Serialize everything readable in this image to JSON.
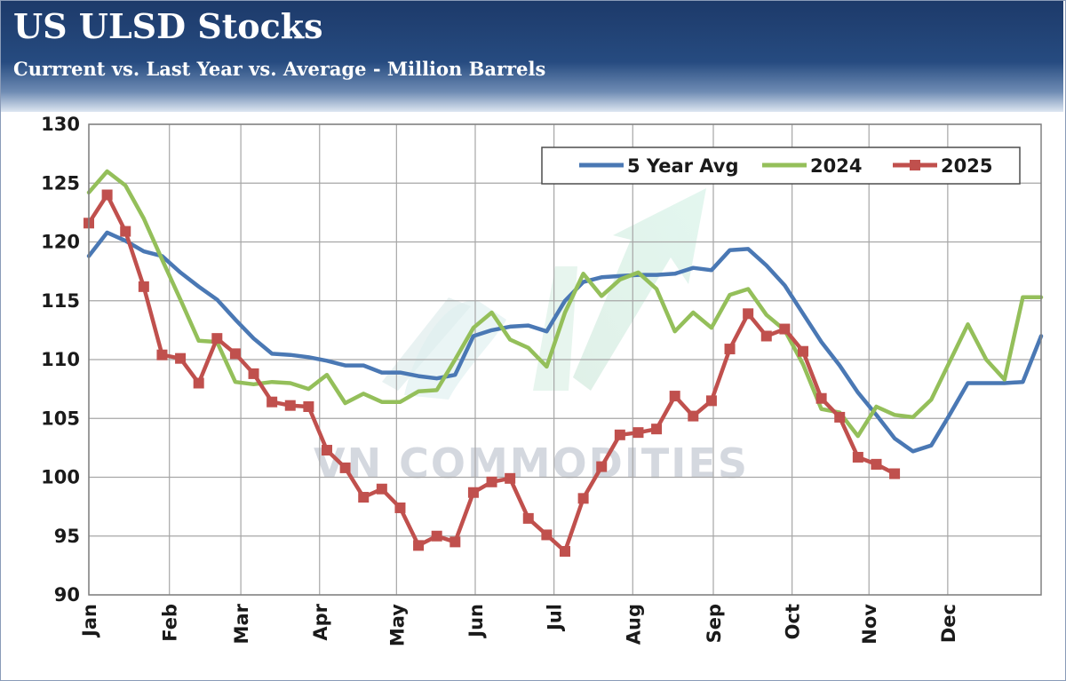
{
  "header": {
    "title": "US ULSD Stocks",
    "subtitle": "Currrent vs. Last Year vs. Average - Million Barrels"
  },
  "watermark": {
    "text": "VN COMMODITIES"
  },
  "chart_data": {
    "type": "line",
    "title": "US ULSD Stocks",
    "subtitle": "Currrent vs. Last Year vs. Average - Million Barrels",
    "xlabel": "",
    "ylabel": "",
    "ylim": [
      90,
      130
    ],
    "yticks": [
      90,
      95,
      100,
      105,
      110,
      115,
      120,
      125,
      130
    ],
    "xlim": [
      1,
      53
    ],
    "month_labels": [
      "Jan",
      "Feb",
      "Mar",
      "Apr",
      "May",
      "Jun",
      "Jul",
      "Aug",
      "Sep",
      "Oct",
      "Nov",
      "Dec"
    ],
    "month_weeks": [
      1,
      5.4,
      9.3,
      13.6,
      17.8,
      22.1,
      26.4,
      30.7,
      35.1,
      39.4,
      43.6,
      47.9
    ],
    "grid": true,
    "legend": {
      "position": "top-right",
      "entries": [
        "5 Year Avg",
        "2024",
        "2025"
      ]
    },
    "series": [
      {
        "name": "5 Year Avg",
        "color": "#4a78b4",
        "marker": "none",
        "x": [
          1,
          2,
          3,
          4,
          5,
          6,
          7,
          8,
          9,
          10,
          11,
          12,
          13,
          14,
          15,
          16,
          17,
          18,
          19,
          20,
          21,
          22,
          23,
          24,
          25,
          26,
          27,
          28,
          29,
          30,
          31,
          32,
          33,
          34,
          35,
          36,
          37,
          38,
          39,
          40,
          41,
          42,
          43,
          44,
          45,
          46,
          47,
          48,
          49,
          50,
          51,
          52,
          53
        ],
        "values": [
          118.8,
          120.8,
          120.1,
          119.2,
          118.8,
          117.4,
          116.2,
          115.1,
          113.4,
          111.8,
          110.5,
          110.4,
          110.2,
          109.9,
          109.5,
          109.5,
          108.9,
          108.9,
          108.6,
          108.4,
          108.7,
          112.0,
          112.5,
          112.8,
          112.9,
          112.4,
          115.0,
          116.6,
          117.0,
          117.1,
          117.2,
          117.2,
          117.3,
          117.8,
          117.6,
          119.3,
          119.4,
          118.0,
          116.3,
          113.9,
          111.5,
          109.5,
          107.2,
          105.3,
          103.3,
          102.2,
          102.7,
          105.3,
          108.0,
          108.0,
          108.0,
          108.1,
          112.0
        ]
      },
      {
        "name": "2024",
        "color": "#94bf5a",
        "marker": "none",
        "x": [
          1,
          2,
          3,
          4,
          5,
          6,
          7,
          8,
          9,
          10,
          11,
          12,
          13,
          14,
          15,
          16,
          17,
          18,
          19,
          20,
          21,
          22,
          23,
          24,
          25,
          26,
          27,
          28,
          29,
          30,
          31,
          32,
          33,
          34,
          35,
          36,
          37,
          38,
          39,
          40,
          41,
          42,
          43,
          44,
          45,
          46,
          47,
          48,
          49,
          50,
          51,
          52,
          53
        ],
        "values": [
          124.2,
          126.0,
          124.8,
          122.0,
          118.5,
          115.1,
          111.6,
          111.5,
          108.1,
          107.9,
          108.1,
          108.0,
          107.5,
          108.7,
          106.3,
          107.1,
          106.4,
          106.4,
          107.3,
          107.4,
          110.0,
          112.7,
          114.0,
          111.7,
          111.0,
          109.4,
          114.0,
          117.3,
          115.4,
          116.8,
          117.4,
          116.0,
          112.4,
          114.0,
          112.7,
          115.5,
          116.0,
          113.8,
          112.5,
          109.6,
          105.8,
          105.5,
          103.5,
          106.0,
          105.3,
          105.1,
          106.6,
          109.8,
          113.0,
          110.0,
          108.3,
          115.3,
          115.3
        ]
      },
      {
        "name": "2025",
        "color": "#c0504d",
        "marker": "square",
        "x": [
          1,
          2,
          3,
          4,
          5,
          6,
          7,
          8,
          9,
          10,
          11,
          12,
          13,
          14,
          15,
          16,
          17,
          18,
          19,
          20,
          21,
          22,
          23,
          24,
          25,
          26,
          27,
          28,
          29,
          30,
          31,
          32,
          33,
          34,
          35,
          36,
          37,
          38,
          39,
          40,
          41,
          42,
          43,
          44
        ],
        "values": [
          121.6,
          124.0,
          120.9,
          116.2,
          110.4,
          110.1,
          108.0,
          111.8,
          110.5,
          108.8,
          106.4,
          106.1,
          106.0,
          102.3,
          100.8,
          98.3,
          99.0,
          97.4,
          94.2,
          95.0,
          94.5,
          98.7,
          99.6,
          99.9,
          96.5,
          95.1,
          93.7,
          98.2,
          100.9,
          103.6,
          103.8,
          104.1,
          106.9,
          105.2,
          106.5,
          110.9,
          113.9,
          112.0,
          112.6,
          110.7,
          106.7,
          105.1,
          101.7,
          101.1
        ]
      },
      {
        "name": "2025-tail",
        "legend": false,
        "color": "#c0504d",
        "marker": "square",
        "x": [
          44,
          45
        ],
        "values": [
          101.1,
          100.3
        ]
      }
    ]
  }
}
